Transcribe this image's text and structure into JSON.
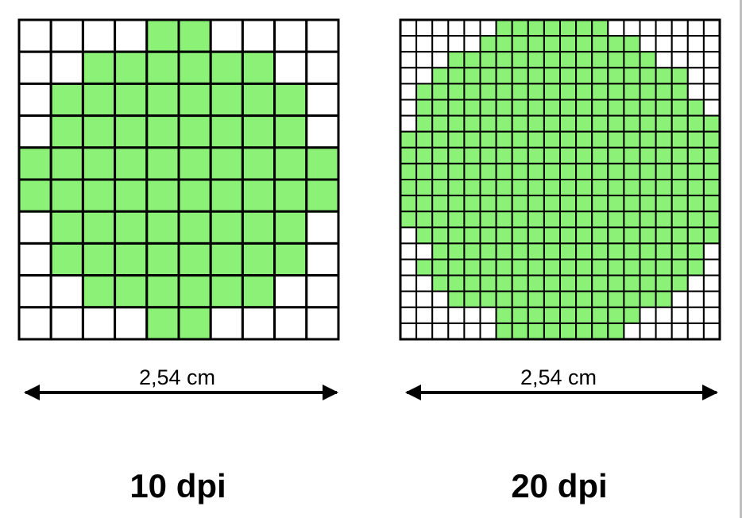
{
  "colors": {
    "fill": "#8cf277",
    "empty": "#ffffff",
    "grid_line": "#000000"
  },
  "panels": [
    {
      "id": "10dpi",
      "measure_label": "2,54 cm",
      "dpi_label": "10 dpi",
      "grid_size": 10,
      "filled_rows": [
        "....##....",
        "..######..",
        ".########.",
        ".########.",
        "##########",
        "##########",
        ".########.",
        ".########.",
        "..######..",
        "....##...."
      ]
    },
    {
      "id": "20dpi",
      "measure_label": "2,54 cm",
      "dpi_label": "20 dpi",
      "grid_size": 20,
      "filled_rows": [
        "......#######.......",
        ".....##########.....",
        "...#############....",
        "..################..",
        ".#################..",
        ".##################.",
        ".###################",
        "####################",
        "####################",
        "####################",
        "####################",
        "####################",
        "####################",
        ".###################",
        "..#################.",
        ".##################.",
        "..################..",
        "...##############...",
        "......#########.....",
        "......########......"
      ]
    }
  ]
}
